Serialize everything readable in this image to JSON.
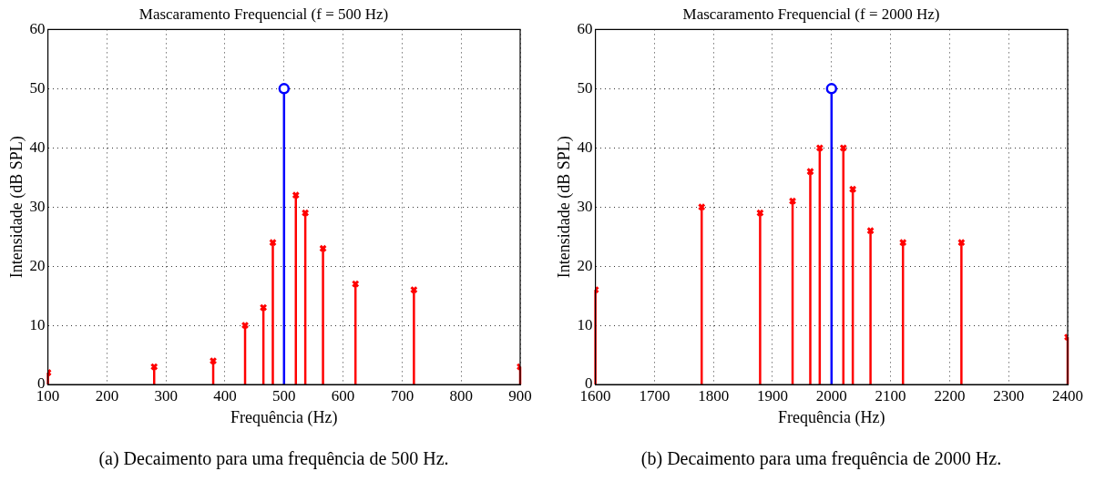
{
  "chart_data": [
    {
      "type": "lollipop",
      "title": "Mascaramento Frequencial (f = 500 Hz)",
      "xlabel": "Frequência (Hz)",
      "ylabel": "Intensidade (dB SPL)",
      "xlim": [
        100,
        900
      ],
      "xticks": [
        100,
        200,
        300,
        400,
        500,
        600,
        700,
        800,
        900
      ],
      "ylim": [
        0,
        60
      ],
      "yticks": [
        0,
        10,
        20,
        30,
        40,
        50,
        60
      ],
      "grid": true,
      "annotations": [
        "(a) Decaimento para uma frequência de 500 Hz."
      ],
      "series": [
        {
          "color": "#ff0000",
          "marker": "cross",
          "x": [
            100,
            280,
            380,
            434,
            465,
            481,
            520,
            536,
            566,
            621,
            720,
            900
          ],
          "values": [
            2,
            3,
            4,
            10,
            13,
            24,
            32,
            29,
            23,
            17,
            16,
            3
          ]
        },
        {
          "color": "#0000ff",
          "marker": "circle",
          "x": [
            500
          ],
          "values": [
            50
          ]
        }
      ]
    },
    {
      "type": "lollipop",
      "title": "Mascaramento Frequencial (f = 2000 Hz)",
      "xlabel": "Frequência (Hz)",
      "ylabel": "Intensidade (dB SPL)",
      "xlim": [
        1600,
        2400
      ],
      "xticks": [
        1600,
        1700,
        1800,
        1900,
        2000,
        2100,
        2200,
        2300,
        2400
      ],
      "ylim": [
        0,
        60
      ],
      "yticks": [
        0,
        10,
        20,
        30,
        40,
        50,
        60
      ],
      "grid": true,
      "annotations": [
        "(b) Decaimento para uma frequência de 2000 Hz."
      ],
      "series": [
        {
          "color": "#ff0000",
          "marker": "cross",
          "x": [
            1600,
            1780,
            1879,
            1934,
            1964,
            1980,
            2020,
            2036,
            2066,
            2121,
            2220,
            2400
          ],
          "values": [
            16,
            30,
            29,
            31,
            36,
            40,
            40,
            33,
            26,
            24,
            24,
            8
          ]
        },
        {
          "color": "#0000ff",
          "marker": "circle",
          "x": [
            2000
          ],
          "values": [
            50
          ]
        }
      ]
    }
  ]
}
